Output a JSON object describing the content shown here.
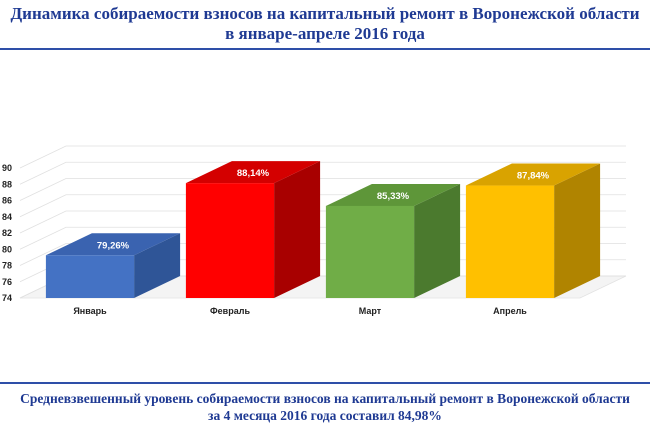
{
  "header": {
    "title_line1": "Динамика собираемости взносов на капитальный ремонт в Воронежской области",
    "title_line2": "в  январе-апреле 2016 года"
  },
  "footer": {
    "line1": "Средневзвешенный уровень собираемости взносов на капитальный ремонт в Воронежской области",
    "line2": "за 4 месяца 2016 года составил 84,98%"
  },
  "chart_data": {
    "type": "bar",
    "categories": [
      "Январь",
      "Февраль",
      "Март",
      "Апрель"
    ],
    "values": [
      79.26,
      88.14,
      85.33,
      87.84
    ],
    "data_labels": [
      "79,26%",
      "88,14%",
      "85,33%",
      "87,84%"
    ],
    "colors": {
      "Январь": {
        "front": "#4472c4",
        "side": "#2f5597",
        "top": "#3a63b0"
      },
      "Февраль": {
        "front": "#ff0000",
        "side": "#a80000",
        "top": "#d40000"
      },
      "Март": {
        "front": "#70ad47",
        "side": "#4b7a2e",
        "top": "#5e9639"
      },
      "Апрель": {
        "front": "#ffc000",
        "side": "#b08400",
        "top": "#d9a300"
      }
    },
    "yticks": [
      74,
      76,
      78,
      80,
      82,
      84,
      86,
      88,
      90
    ],
    "ylim": [
      74,
      90
    ],
    "grid": true,
    "legend": "none",
    "style": "3d-column"
  }
}
